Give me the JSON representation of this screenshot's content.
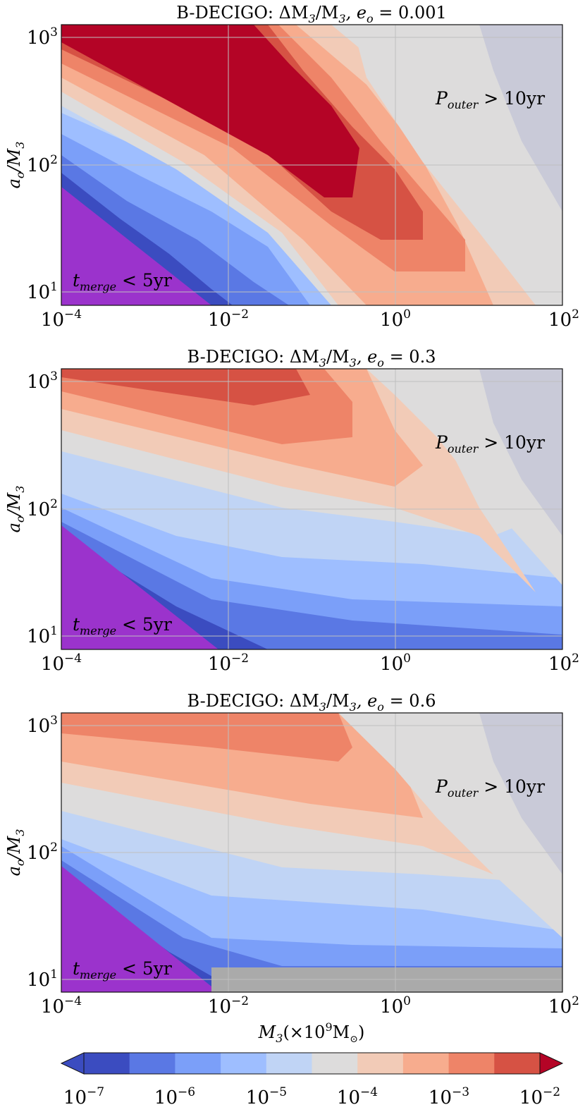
{
  "palette": [
    "#3b4cc0",
    "#5a78e4",
    "#7b9ff9",
    "#9ebeff",
    "#c0d4f5",
    "#dddcdc",
    "#f2cbb7",
    "#f7ac8e",
    "#ee8468",
    "#d65244",
    "#b40426"
  ],
  "colorbar": {
    "ticks": [
      {
        "base": "10",
        "exp": "−7"
      },
      {
        "base": "10",
        "exp": "−6"
      },
      {
        "base": "10",
        "exp": "−5"
      },
      {
        "base": "10",
        "exp": "−4"
      },
      {
        "base": "10",
        "exp": "−3"
      },
      {
        "base": "10",
        "exp": "−2"
      }
    ]
  },
  "chart_data": [
    {
      "type": "heatmap",
      "title_prefix": "B-DECIGO: ΔM",
      "title_mid": "/M",
      "title_var": ", e",
      "title_eq": " = 0.001",
      "ylabel": "a",
      "ylabel_rest": "/M",
      "xscale": "log",
      "yscale": "log",
      "xlim": [
        0.0001,
        100
      ],
      "ylim": [
        8,
        1300
      ],
      "grid": true,
      "xticks": [
        {
          "base": "10",
          "exp": "−4"
        },
        {
          "base": "10",
          "exp": "−2"
        },
        {
          "base": "10",
          "exp": "0"
        },
        {
          "base": "10",
          "exp": "2"
        }
      ],
      "yticks": [
        {
          "base": "10",
          "exp": "1"
        },
        {
          "base": "10",
          "exp": "2"
        },
        {
          "base": "10",
          "exp": "3"
        }
      ],
      "annotation_outer": "P",
      "annotation_outer_sub": "outer",
      "annotation_outer_rest": " > 10yr",
      "annotation_merge": "t",
      "annotation_merge_sub": "merge",
      "annotation_merge_rest": " < 5yr"
    },
    {
      "type": "heatmap",
      "title_prefix": "B-DECIGO: ΔM",
      "title_mid": "/M",
      "title_var": ", e",
      "title_eq": " = 0.3",
      "ylabel": "a",
      "ylabel_rest": "/M",
      "xscale": "log",
      "yscale": "log",
      "xlim": [
        0.0001,
        100
      ],
      "ylim": [
        8,
        1300
      ],
      "grid": true,
      "xticks": [
        {
          "base": "10",
          "exp": "−4"
        },
        {
          "base": "10",
          "exp": "−2"
        },
        {
          "base": "10",
          "exp": "0"
        },
        {
          "base": "10",
          "exp": "2"
        }
      ],
      "yticks": [
        {
          "base": "10",
          "exp": "1"
        },
        {
          "base": "10",
          "exp": "2"
        },
        {
          "base": "10",
          "exp": "3"
        }
      ],
      "annotation_outer": "P",
      "annotation_outer_sub": "outer",
      "annotation_outer_rest": " > 10yr",
      "annotation_merge": "t",
      "annotation_merge_sub": "merge",
      "annotation_merge_rest": " < 5yr"
    },
    {
      "type": "heatmap",
      "title_prefix": "B-DECIGO: ΔM",
      "title_mid": "/M",
      "title_var": ", e",
      "title_eq": " = 0.6",
      "ylabel": "a",
      "ylabel_rest": "/M",
      "xlabel": "M",
      "xlabel_rest": "(×10",
      "xlabel_exp": "9",
      "xlabel_unit": "M",
      "xlabel_close": ")",
      "xscale": "log",
      "yscale": "log",
      "xlim": [
        0.0001,
        100
      ],
      "ylim": [
        8,
        1300
      ],
      "grid": true,
      "xticks": [
        {
          "base": "10",
          "exp": "−4"
        },
        {
          "base": "10",
          "exp": "−2"
        },
        {
          "base": "10",
          "exp": "0"
        },
        {
          "base": "10",
          "exp": "2"
        }
      ],
      "yticks": [
        {
          "base": "10",
          "exp": "1"
        },
        {
          "base": "10",
          "exp": "2"
        },
        {
          "base": "10",
          "exp": "3"
        }
      ],
      "annotation_outer": "P",
      "annotation_outer_sub": "outer",
      "annotation_outer_rest": " > 10yr",
      "annotation_merge": "t",
      "annotation_merge_sub": "merge",
      "annotation_merge_rest": " < 5yr"
    }
  ]
}
